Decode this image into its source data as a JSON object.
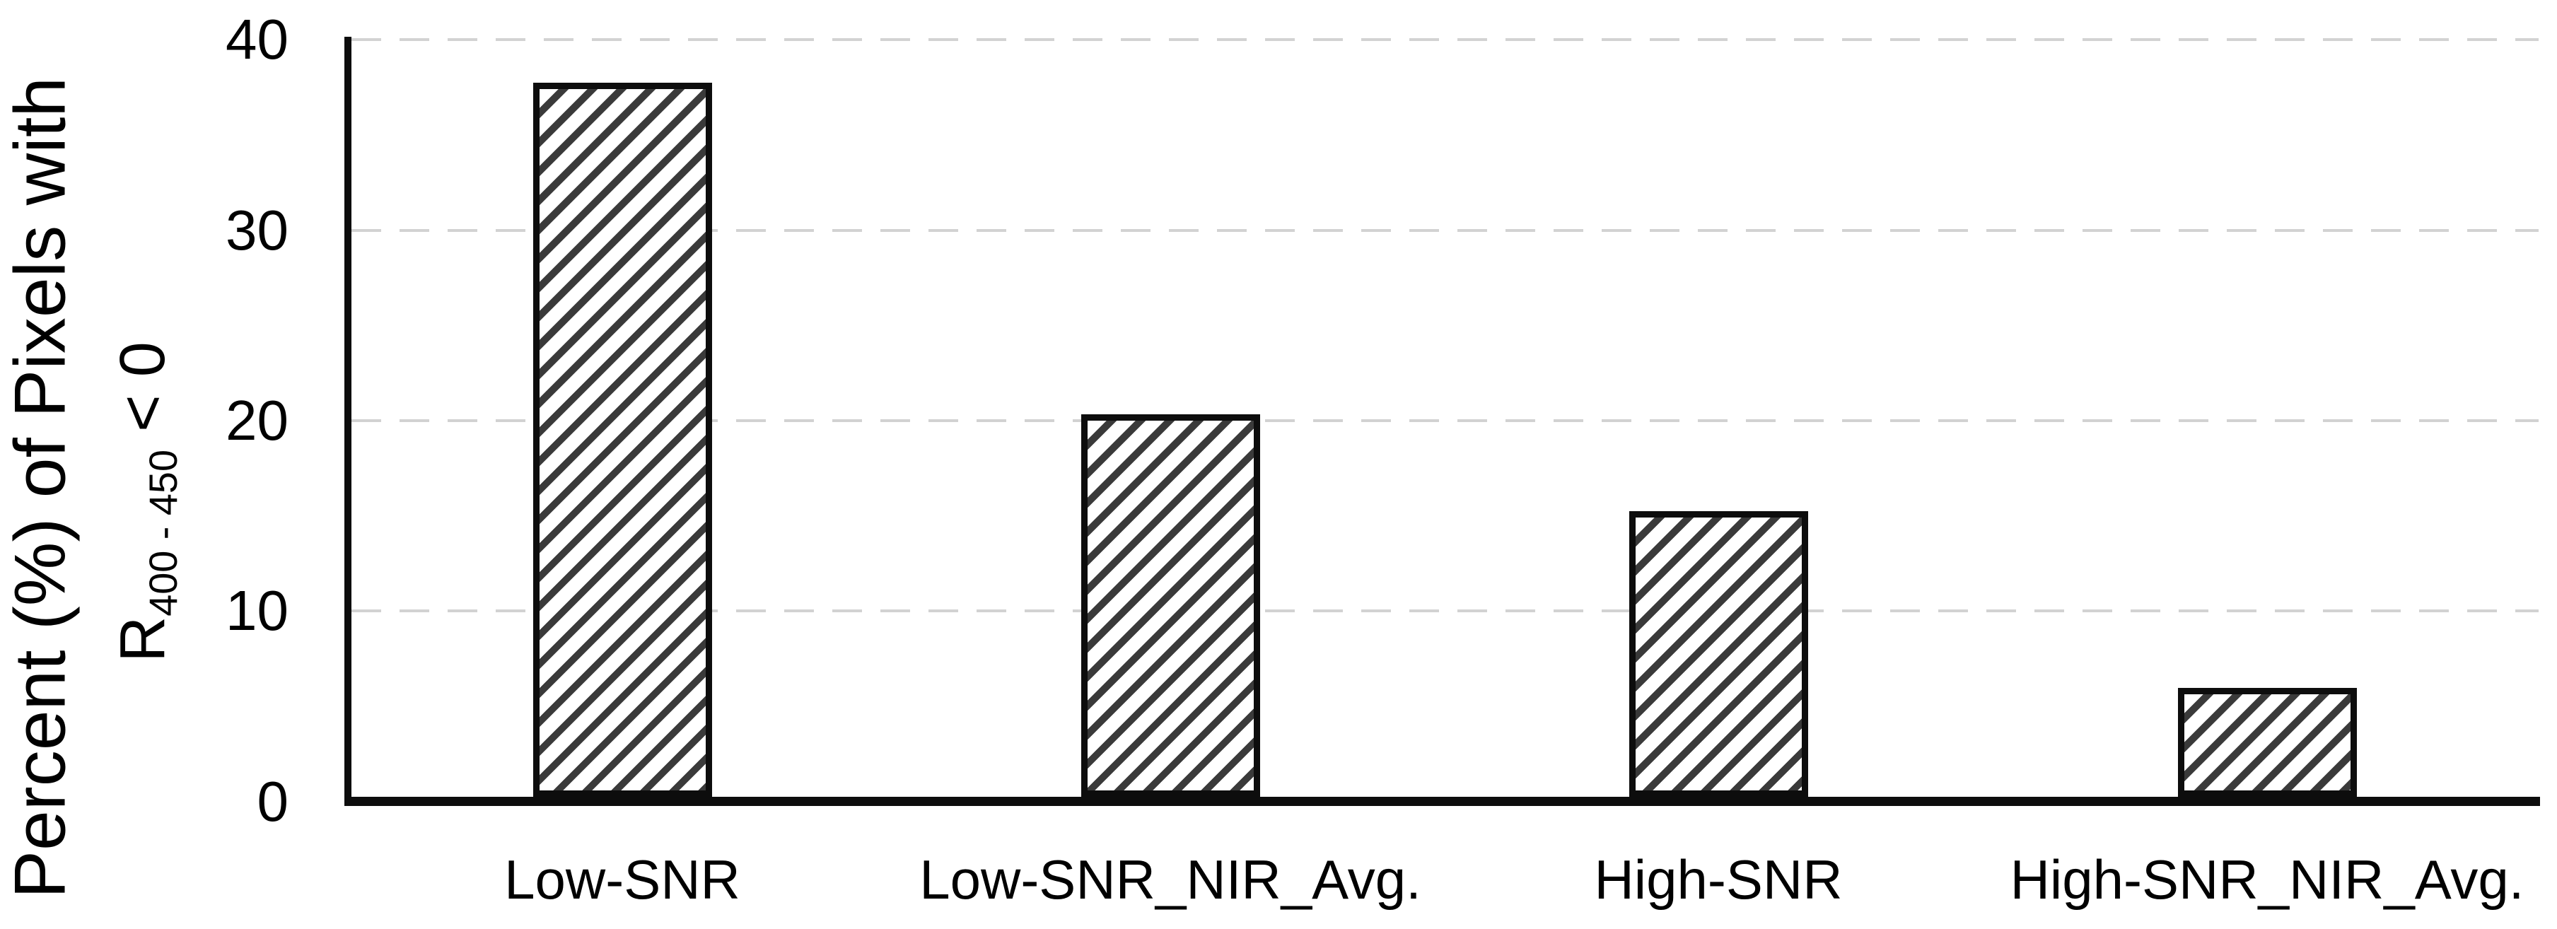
{
  "chart_data": {
    "type": "bar",
    "title": "",
    "ylabel_line1": "Percent (%) of Pixels with",
    "ylabel_line2": {
      "prefix": "R",
      "subscript": "400 - 450",
      "suffix": "< 0"
    },
    "categories": [
      "Low-SNR",
      "Low-SNR_NIR_Avg.",
      "High-SNR",
      "High-SNR_NIR_Avg."
    ],
    "values": [
      37.5,
      20.1,
      15.0,
      5.7
    ],
    "xlabel": "",
    "ylim": [
      0,
      40
    ],
    "yticks": [
      40,
      30,
      20,
      10,
      0
    ],
    "grid": "horizontal dashed gridlines at 10, 20, 30, 40",
    "legend_position": "none",
    "bar_style": {
      "fill": "white with dark upward diagonal hatch",
      "hatch_direction": "bottom-left to top-right",
      "hatch_color": "#3a3a3a",
      "border_color": "#0d0d0d"
    },
    "colors": {
      "background": "#ffffff",
      "gridline": "#d2d2d2",
      "axis": "#0d0d0d",
      "text": "#000000"
    }
  }
}
